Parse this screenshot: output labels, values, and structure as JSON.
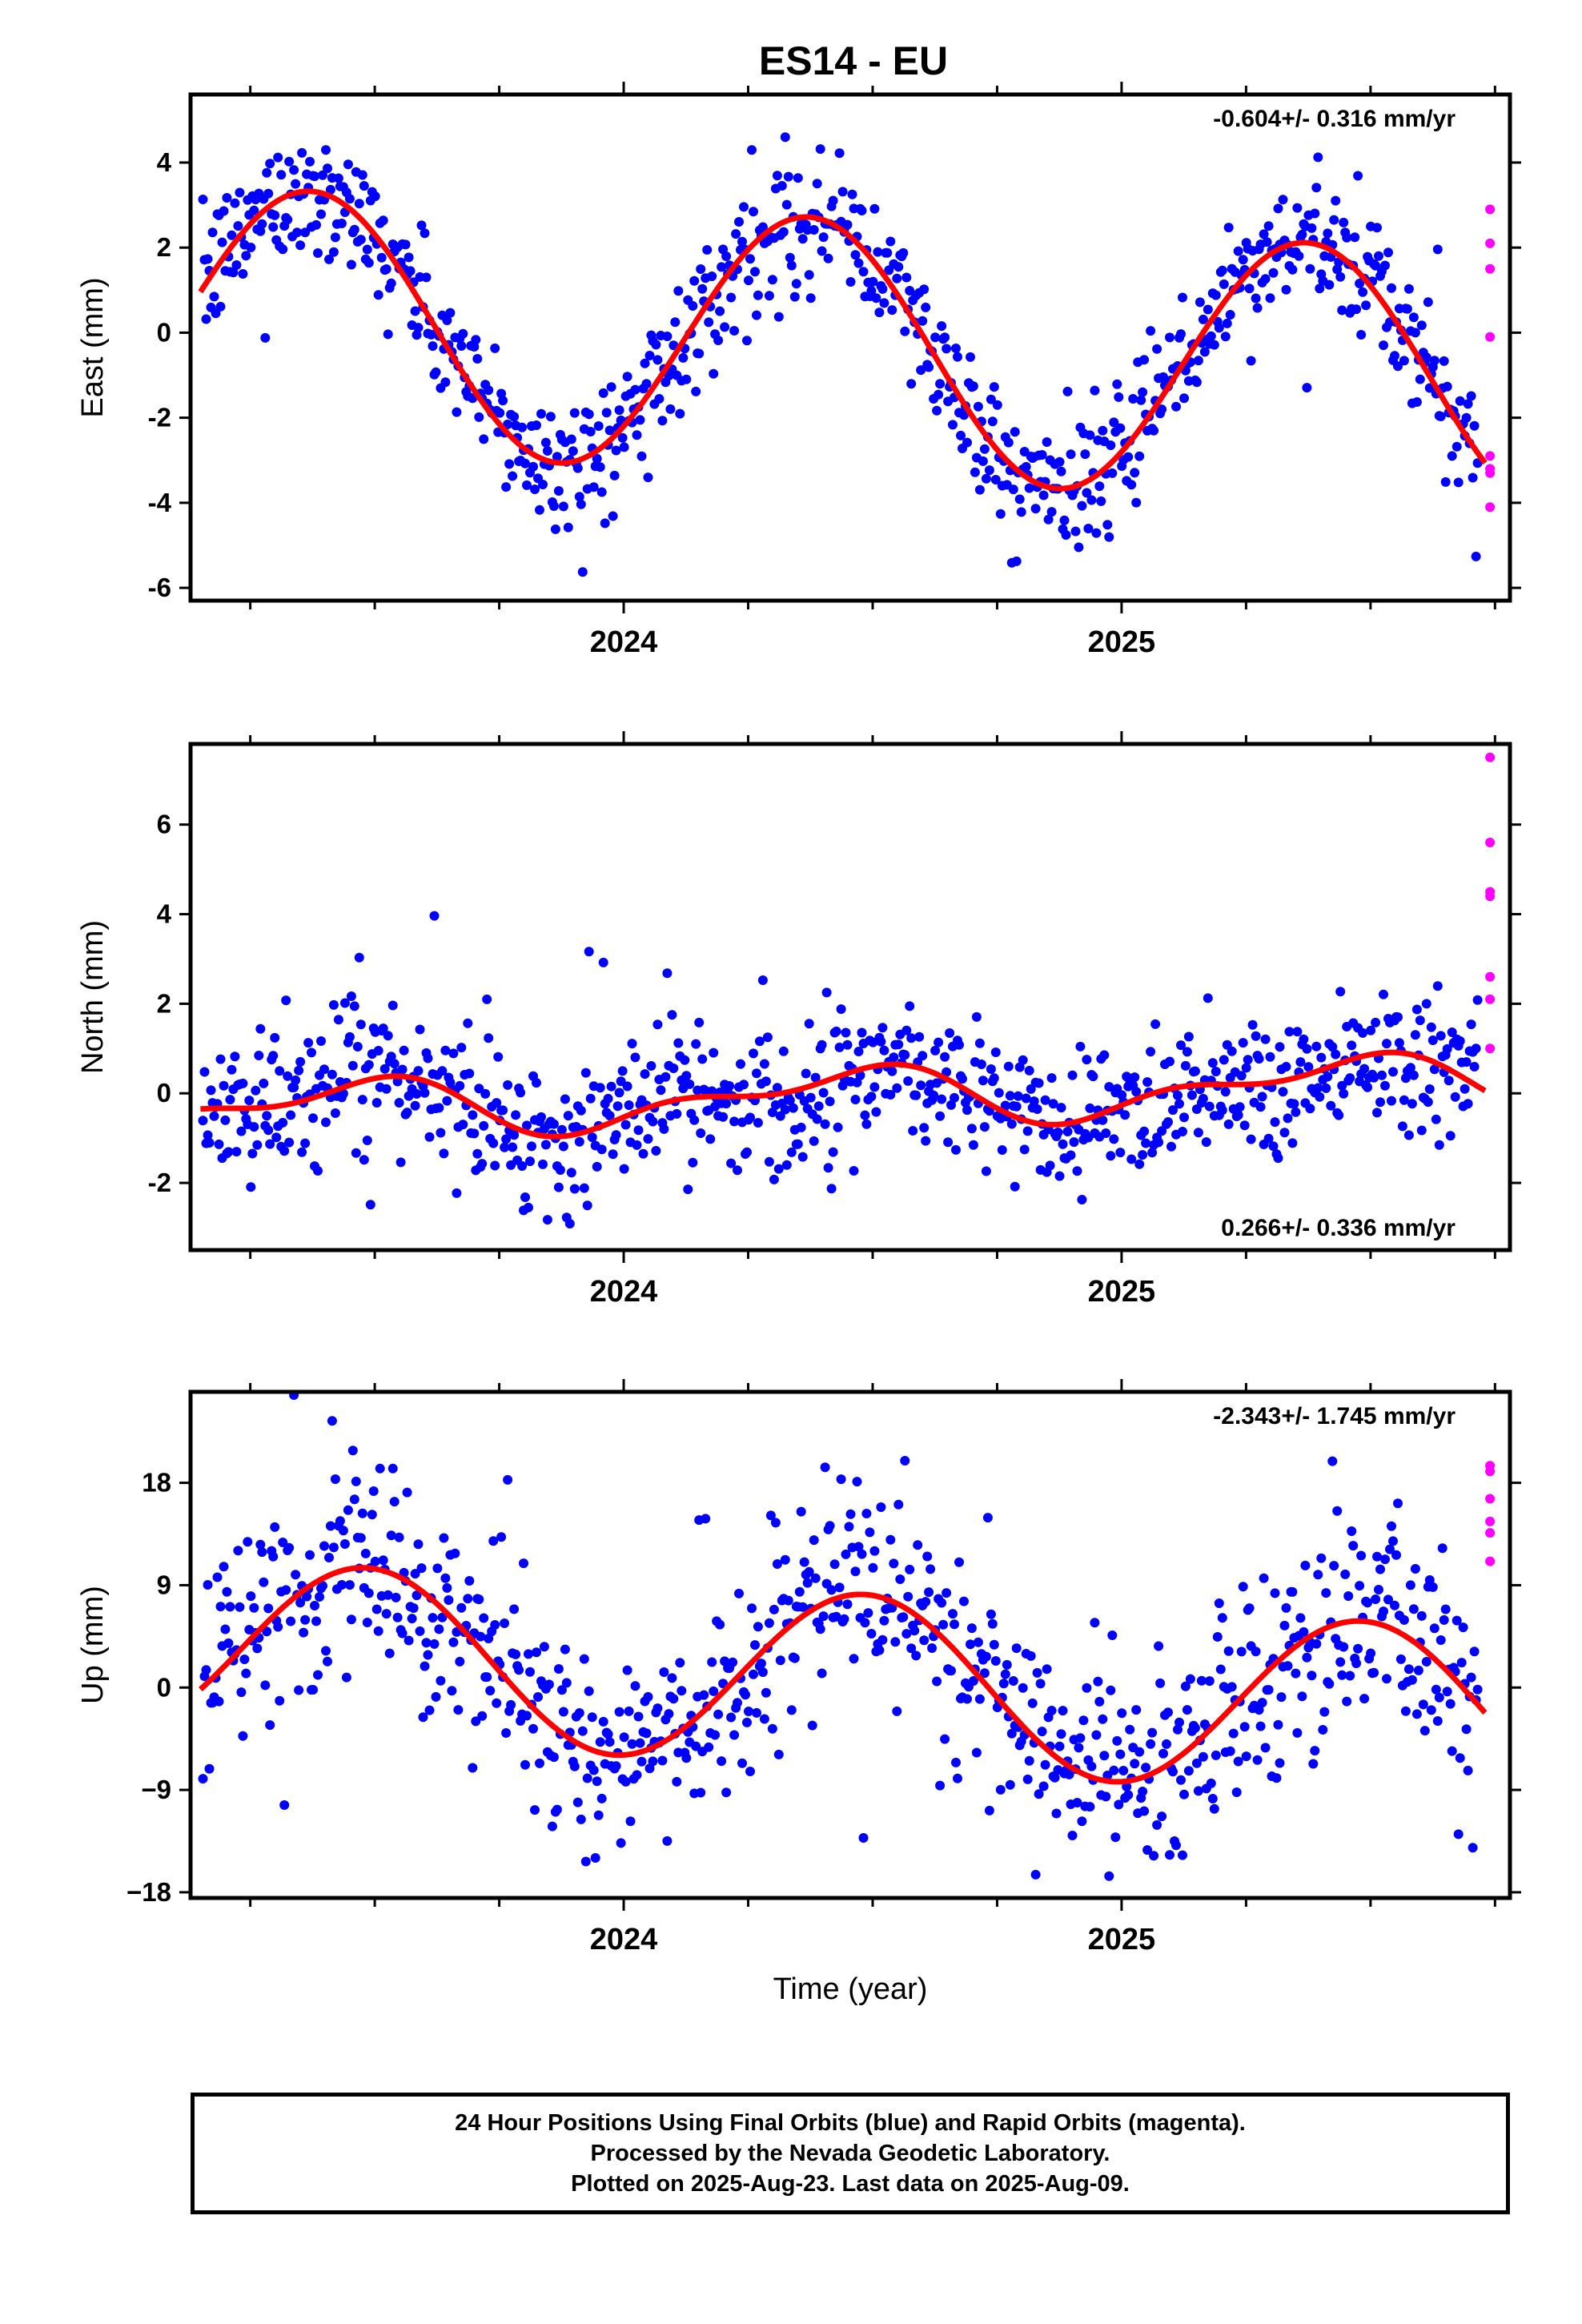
{
  "title": "ES14 - EU",
  "colors": {
    "final": "#0000ff",
    "rapid": "#ff00ff",
    "model": "#ff0000",
    "axis": "#000000"
  },
  "chart_data": [
    {
      "type": "scatter",
      "ylabel": "East (mm)",
      "rate_label": "-0.604+/- 0.316 mm/yr",
      "rate_position": "top-right",
      "xlim": [
        2023.13,
        2025.78
      ],
      "ylim": [
        -6.3,
        5.6
      ],
      "yticks": [
        -6,
        -4,
        -2,
        0,
        2,
        4
      ],
      "ytick_labels": [
        "-6",
        "-4",
        "-2",
        "0",
        "2",
        "4"
      ],
      "xticks": [
        2024,
        2025
      ],
      "xtick_labels": [
        "2024",
        "2025"
      ],
      "model": {
        "rate": -0.604,
        "offset": -0.4,
        "ann_sin": 2.2,
        "ann_cos": -2.1,
        "semi_sin": 0.0,
        "semi_cos": 0.0
      },
      "series": [
        {
          "name": "Final Orbits",
          "color": "#0000ff",
          "scatter": 0.75,
          "n": 800
        },
        {
          "name": "Rapid Orbits",
          "color": "#ff00ff",
          "x": [
            2025.74,
            2025.74,
            2025.74,
            2025.74,
            2025.74,
            2025.74,
            2025.74,
            2025.74
          ],
          "y": [
            2.9,
            2.1,
            1.5,
            -0.1,
            -2.9,
            -3.2,
            -4.1,
            -3.3
          ]
        }
      ]
    },
    {
      "type": "scatter",
      "ylabel": "North (mm)",
      "rate_label": "0.266+/- 0.336 mm/yr",
      "rate_position": "bottom-right",
      "xlim": [
        2023.13,
        2025.78
      ],
      "ylim": [
        -3.5,
        7.8
      ],
      "yticks": [
        -2,
        0,
        2,
        4,
        6
      ],
      "ytick_labels": [
        "-2",
        "0",
        "2",
        "4",
        "6"
      ],
      "xticks": [
        2024,
        2025
      ],
      "xtick_labels": [
        "2024",
        "2025"
      ],
      "model": {
        "rate": 0.266,
        "offset": -0.05,
        "ann_sin": 0.2,
        "ann_cos": -0.5,
        "semi_sin": 0.25,
        "semi_cos": 0.15
      },
      "series": [
        {
          "name": "Final Orbits",
          "color": "#0000ff",
          "scatter": 0.8,
          "n": 800
        },
        {
          "name": "Rapid Orbits",
          "color": "#ff00ff",
          "x": [
            2025.74,
            2025.74,
            2025.74,
            2025.74,
            2025.74,
            2025.74,
            2025.74
          ],
          "y": [
            7.5,
            5.6,
            4.5,
            4.4,
            2.6,
            2.1,
            1.0
          ]
        }
      ]
    },
    {
      "type": "scatter",
      "ylabel": "Up (mm)",
      "rate_label": "-2.343+/- 1.745 mm/yr",
      "rate_position": "top-right",
      "xlim": [
        2023.13,
        2025.78
      ],
      "ylim": [
        -18.5,
        26
      ],
      "yticks": [
        -18,
        -9,
        0,
        9,
        18
      ],
      "ytick_labels": [
        "−18",
        "−9",
        "0",
        "9",
        "18"
      ],
      "xticks": [
        2024,
        2025
      ],
      "xtick_labels": [
        "2024",
        "2025"
      ],
      "xlabel": "Time (year)",
      "model": {
        "rate": -2.343,
        "offset": 0.5,
        "ann_sin": 0.8,
        "ann_cos": -7.6,
        "semi_sin": 0.0,
        "semi_cos": 0.0
      },
      "series": [
        {
          "name": "Final Orbits",
          "color": "#0000ff",
          "scatter": 4.5,
          "n": 800
        },
        {
          "name": "Rapid Orbits",
          "color": "#ff00ff",
          "x": [
            2025.74,
            2025.74,
            2025.74,
            2025.74,
            2025.74,
            2025.74
          ],
          "y": [
            19.5,
            19.0,
            16.6,
            14.6,
            13.6,
            11.1
          ]
        }
      ]
    }
  ],
  "caption": {
    "line1": "24 Hour Positions Using Final Orbits (blue) and Rapid Orbits (magenta).",
    "line2": "Processed by the Nevada Geodetic Laboratory.",
    "line3": "Plotted on 2025-Aug-23. Last data on 2025-Aug-09."
  }
}
